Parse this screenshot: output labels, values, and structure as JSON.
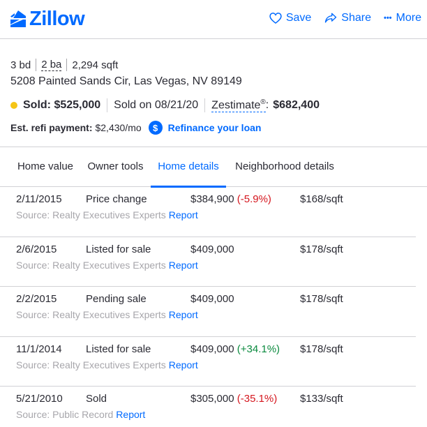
{
  "header": {
    "logo_text": "Zillow",
    "save_label": "Save",
    "share_label": "Share",
    "more_label": "More",
    "more_dots": "•••"
  },
  "summary": {
    "beds": "3 bd",
    "baths": "2 ba",
    "sqft": "2,294 sqft",
    "address": "5208 Painted Sands Cir, Las Vegas, NV 89149",
    "status_label": "Sold: $525,000",
    "sold_on": "Sold on 08/21/20",
    "zestimate_label": "Zestimate",
    "zestimate_reg": "®",
    "zestimate_colon": ":",
    "zestimate_value": "$682,400",
    "status_color": "#f5c516"
  },
  "refi": {
    "label": "Est. refi payment:",
    "value": "$2,430/mo",
    "icon_glyph": "$",
    "link": "Refinance your loan"
  },
  "tabs": [
    {
      "label": "Home value",
      "active": false
    },
    {
      "label": "Owner tools",
      "active": false
    },
    {
      "label": "Home details",
      "active": true
    },
    {
      "label": "Neighborhood details",
      "active": false
    }
  ],
  "history": [
    {
      "date": "2/11/2015",
      "event": "Price change",
      "price": "$384,900",
      "change": "(-5.9%)",
      "change_dir": "neg",
      "ppsf": "$168/sqft",
      "source": "Source: Realty Executives Experts",
      "report": "Report"
    },
    {
      "date": "2/6/2015",
      "event": "Listed for sale",
      "price": "$409,000",
      "change": "",
      "change_dir": "",
      "ppsf": "$178/sqft",
      "source": "Source: Realty Executives Experts",
      "report": "Report"
    },
    {
      "date": "2/2/2015",
      "event": "Pending sale",
      "price": "$409,000",
      "change": "",
      "change_dir": "",
      "ppsf": "$178/sqft",
      "source": "Source: Realty Executives Experts",
      "report": "Report"
    },
    {
      "date": "11/1/2014",
      "event": "Listed for sale",
      "price": "$409,000",
      "change": "(+34.1%)",
      "change_dir": "pos",
      "ppsf": "$178/sqft",
      "source": "Source: Realty Executives Experts",
      "report": "Report"
    },
    {
      "date": "5/21/2010",
      "event": "Sold",
      "price": "$305,000",
      "change": "(-35.1%)",
      "change_dir": "neg",
      "ppsf": "$133/sqft",
      "source": "Source: Public Record",
      "report": "Report"
    }
  ],
  "colors": {
    "brand": "#006aff",
    "negative": "#d5161e",
    "positive": "#0a8a3e"
  }
}
